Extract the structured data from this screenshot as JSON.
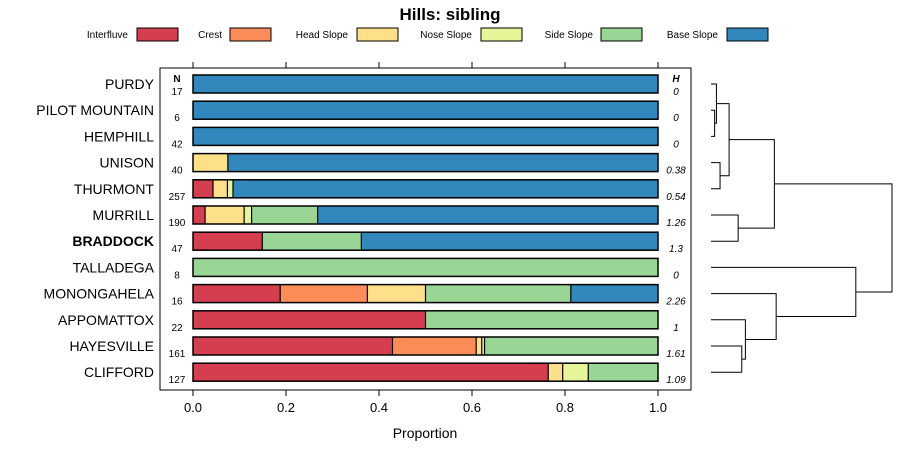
{
  "chart_data": {
    "type": "bar",
    "subtype": "stacked-horizontal-proportion",
    "title": "Hills: sibling",
    "xlabel": "Proportion",
    "xlim": [
      0,
      1
    ],
    "xticks": [
      0.0,
      0.2,
      0.4,
      0.6,
      0.8,
      1.0
    ],
    "xtick_labels": [
      "0.0",
      "0.2",
      "0.4",
      "0.6",
      "0.8",
      "1.0"
    ],
    "n_header": "N",
    "h_header": "H",
    "legend_position": "top",
    "legend": [
      {
        "name": "Interfluve",
        "color": "#D53E4F"
      },
      {
        "name": "Crest",
        "color": "#FC8D59"
      },
      {
        "name": "Head Slope",
        "color": "#FEE08B"
      },
      {
        "name": "Nose Slope",
        "color": "#E6F598"
      },
      {
        "name": "Side Slope",
        "color": "#99D594"
      },
      {
        "name": "Base Slope",
        "color": "#3288BD"
      }
    ],
    "rows": [
      {
        "label": "PURDY",
        "bold": false,
        "n": "17",
        "h": "0",
        "values": [
          0,
          0,
          0,
          0,
          0,
          1.0
        ]
      },
      {
        "label": "PILOT MOUNTAIN",
        "bold": false,
        "n": "6",
        "h": "0",
        "values": [
          0,
          0,
          0,
          0,
          0,
          1.0
        ]
      },
      {
        "label": "HEMPHILL",
        "bold": false,
        "n": "42",
        "h": "0",
        "values": [
          0,
          0,
          0,
          0,
          0,
          1.0
        ]
      },
      {
        "label": "UNISON",
        "bold": false,
        "n": "40",
        "h": "0.38",
        "values": [
          0,
          0,
          0.075,
          0,
          0,
          0.925
        ]
      },
      {
        "label": "THURMONT",
        "bold": false,
        "n": "257",
        "h": "0.54",
        "values": [
          0.043,
          0,
          0.031,
          0.012,
          0,
          0.914
        ]
      },
      {
        "label": "MURRILL",
        "bold": false,
        "n": "190",
        "h": "1.26",
        "values": [
          0.026,
          0,
          0.084,
          0.016,
          0.142,
          0.732
        ]
      },
      {
        "label": "BRADDOCK",
        "bold": true,
        "n": "47",
        "h": "1.3",
        "values": [
          0.149,
          0,
          0,
          0,
          0.213,
          0.638
        ]
      },
      {
        "label": "TALLADEGA",
        "bold": false,
        "n": "8",
        "h": "0",
        "values": [
          0,
          0,
          0,
          0,
          1.0,
          0
        ]
      },
      {
        "label": "MONONGAHELA",
        "bold": false,
        "n": "16",
        "h": "2.26",
        "values": [
          0.1875,
          0.1875,
          0.125,
          0,
          0.3125,
          0.1875
        ]
      },
      {
        "label": "APPOMATTOX",
        "bold": false,
        "n": "22",
        "h": "1",
        "values": [
          0.5,
          0,
          0,
          0,
          0.5,
          0
        ]
      },
      {
        "label": "HAYESVILLE",
        "bold": false,
        "n": "161",
        "h": "1.61",
        "values": [
          0.429,
          0.18,
          0.012,
          0.006,
          0.373,
          0
        ]
      },
      {
        "label": "CLIFFORD",
        "bold": false,
        "n": "127",
        "h": "1.09",
        "values": [
          0.764,
          0,
          0.031,
          0.055,
          0.15,
          0
        ]
      }
    ],
    "dendrogram": {
      "leaf_order": [
        "PURDY",
        "PILOT MOUNTAIN",
        "HEMPHILL",
        "UNISON",
        "THURMONT",
        "MURRILL",
        "BRADDOCK",
        "TALLADEGA",
        "MONONGAHELA",
        "APPOMATTOX",
        "HAYESVILLE",
        "CLIFFORD"
      ],
      "merges": [
        {
          "a": "PILOT MOUNTAIN",
          "b": "HEMPHILL",
          "height": 0.02
        },
        {
          "a": "PURDY",
          "b": "m0",
          "height": 0.03
        },
        {
          "a": "UNISON",
          "b": "THURMONT",
          "height": 0.05
        },
        {
          "a": "m1",
          "b": "m2",
          "height": 0.1
        },
        {
          "a": "MURRILL",
          "b": "BRADDOCK",
          "height": 0.15
        },
        {
          "a": "m3",
          "b": "m4",
          "height": 0.35
        },
        {
          "a": "HAYESVILLE",
          "b": "CLIFFORD",
          "height": 0.17
        },
        {
          "a": "APPOMATTOX",
          "b": "m6",
          "height": 0.19
        },
        {
          "a": "MONONGAHELA",
          "b": "m7",
          "height": 0.36
        },
        {
          "a": "TALLADEGA",
          "b": "m8",
          "height": 0.8
        },
        {
          "a": "m5",
          "b": "m9",
          "height": 1.0
        }
      ]
    }
  }
}
